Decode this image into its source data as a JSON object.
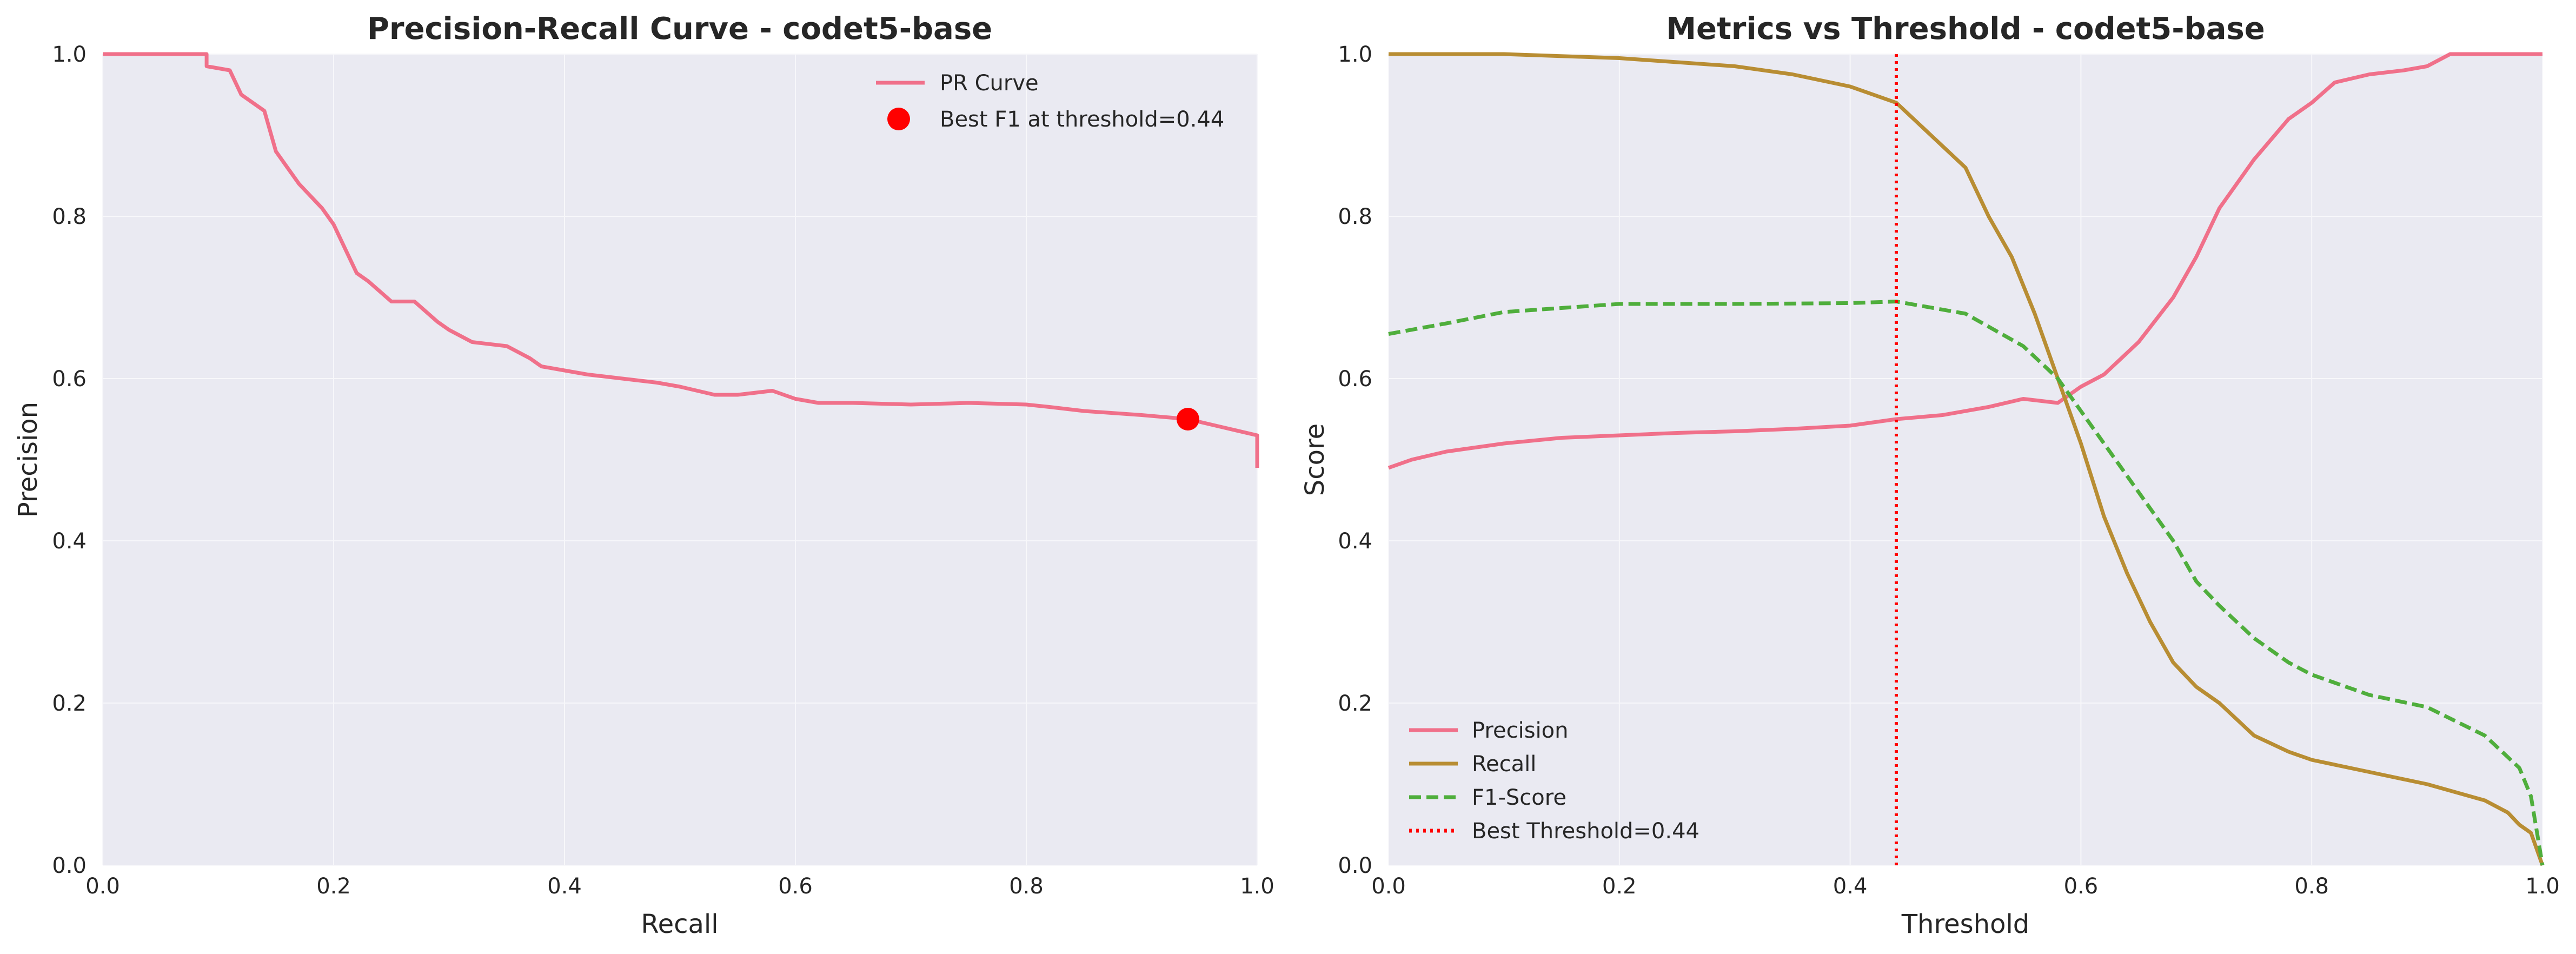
{
  "colors": {
    "background": "#EAEAF2",
    "grid": "#F7F7FA",
    "precision": "#F0708A",
    "recall": "#B88D33",
    "f1": "#4FAE3C",
    "best": "#FF0000"
  },
  "chart_data": [
    {
      "type": "line",
      "title": "Precision-Recall Curve - codet5-base",
      "xlabel": "Recall",
      "ylabel": "Precision",
      "xlim": [
        0,
        1
      ],
      "ylim": [
        0,
        1
      ],
      "xticks": [
        "0.0",
        "0.2",
        "0.4",
        "0.6",
        "0.8",
        "1.0"
      ],
      "yticks": [
        "0.0",
        "0.2",
        "0.4",
        "0.6",
        "0.8",
        "1.0"
      ],
      "grid": true,
      "legend_position": "top-right",
      "series": [
        {
          "name": "PR Curve",
          "style": "solid",
          "color": "#F0708A",
          "x": [
            0.0,
            0.09,
            0.09,
            0.11,
            0.12,
            0.14,
            0.15,
            0.16,
            0.17,
            0.19,
            0.2,
            0.21,
            0.22,
            0.23,
            0.25,
            0.27,
            0.29,
            0.3,
            0.32,
            0.35,
            0.37,
            0.38,
            0.4,
            0.42,
            0.45,
            0.48,
            0.5,
            0.53,
            0.55,
            0.58,
            0.6,
            0.62,
            0.65,
            0.7,
            0.75,
            0.8,
            0.82,
            0.85,
            0.9,
            0.94,
            0.97,
            1.0,
            1.0
          ],
          "y": [
            1.0,
            1.0,
            0.985,
            0.98,
            0.95,
            0.93,
            0.88,
            0.86,
            0.84,
            0.81,
            0.79,
            0.76,
            0.73,
            0.72,
            0.695,
            0.695,
            0.67,
            0.66,
            0.645,
            0.64,
            0.625,
            0.615,
            0.61,
            0.605,
            0.6,
            0.595,
            0.59,
            0.58,
            0.58,
            0.585,
            0.575,
            0.57,
            0.57,
            0.568,
            0.57,
            0.568,
            0.565,
            0.56,
            0.555,
            0.55,
            0.54,
            0.53,
            0.49
          ]
        },
        {
          "name": "Best F1 at threshold=0.44",
          "style": "marker",
          "color": "#FF0000",
          "x": [
            0.94
          ],
          "y": [
            0.55
          ]
        }
      ]
    },
    {
      "type": "line",
      "title": "Metrics vs Threshold - codet5-base",
      "xlabel": "Threshold",
      "ylabel": "Score",
      "xlim": [
        0,
        1
      ],
      "ylim": [
        0,
        1
      ],
      "xticks": [
        "0.0",
        "0.2",
        "0.4",
        "0.6",
        "0.8",
        "1.0"
      ],
      "yticks": [
        "0.0",
        "0.2",
        "0.4",
        "0.6",
        "0.8",
        "1.0"
      ],
      "grid": true,
      "legend_position": "lower-left",
      "series": [
        {
          "name": "Precision",
          "style": "solid",
          "color": "#F0708A",
          "x": [
            0.0,
            0.02,
            0.05,
            0.1,
            0.15,
            0.2,
            0.25,
            0.3,
            0.35,
            0.4,
            0.44,
            0.48,
            0.52,
            0.55,
            0.58,
            0.6,
            0.62,
            0.65,
            0.68,
            0.7,
            0.72,
            0.75,
            0.78,
            0.8,
            0.82,
            0.85,
            0.88,
            0.9,
            0.92,
            0.95,
            1.0
          ],
          "y": [
            0.49,
            0.5,
            0.51,
            0.52,
            0.527,
            0.53,
            0.533,
            0.535,
            0.538,
            0.542,
            0.55,
            0.555,
            0.565,
            0.575,
            0.57,
            0.59,
            0.605,
            0.645,
            0.7,
            0.75,
            0.81,
            0.87,
            0.92,
            0.94,
            0.965,
            0.975,
            0.98,
            0.985,
            1.0,
            1.0,
            1.0
          ]
        },
        {
          "name": "Recall",
          "style": "solid",
          "color": "#B88D33",
          "x": [
            0.0,
            0.1,
            0.2,
            0.25,
            0.3,
            0.35,
            0.4,
            0.44,
            0.47,
            0.5,
            0.52,
            0.54,
            0.56,
            0.58,
            0.6,
            0.62,
            0.64,
            0.66,
            0.68,
            0.7,
            0.72,
            0.75,
            0.78,
            0.8,
            0.85,
            0.9,
            0.95,
            0.97,
            0.98,
            0.99,
            1.0
          ],
          "y": [
            1.0,
            1.0,
            0.995,
            0.99,
            0.985,
            0.975,
            0.96,
            0.94,
            0.9,
            0.86,
            0.8,
            0.75,
            0.68,
            0.6,
            0.52,
            0.43,
            0.36,
            0.3,
            0.25,
            0.22,
            0.2,
            0.16,
            0.14,
            0.13,
            0.115,
            0.1,
            0.08,
            0.065,
            0.05,
            0.04,
            0.0
          ]
        },
        {
          "name": "F1-Score",
          "style": "dashed",
          "color": "#4FAE3C",
          "x": [
            0.0,
            0.05,
            0.1,
            0.2,
            0.3,
            0.4,
            0.44,
            0.5,
            0.55,
            0.58,
            0.6,
            0.62,
            0.65,
            0.68,
            0.7,
            0.72,
            0.75,
            0.78,
            0.8,
            0.85,
            0.9,
            0.95,
            0.98,
            0.99,
            1.0
          ],
          "y": [
            0.655,
            0.668,
            0.682,
            0.692,
            0.692,
            0.693,
            0.695,
            0.68,
            0.64,
            0.6,
            0.56,
            0.52,
            0.46,
            0.4,
            0.35,
            0.32,
            0.28,
            0.25,
            0.235,
            0.21,
            0.195,
            0.16,
            0.12,
            0.085,
            0.0
          ]
        },
        {
          "name": "Best Threshold=0.44",
          "style": "dotted-vertical",
          "color": "#FF0000",
          "x": [
            0.44,
            0.44
          ],
          "y": [
            0.0,
            1.0
          ]
        }
      ]
    }
  ]
}
